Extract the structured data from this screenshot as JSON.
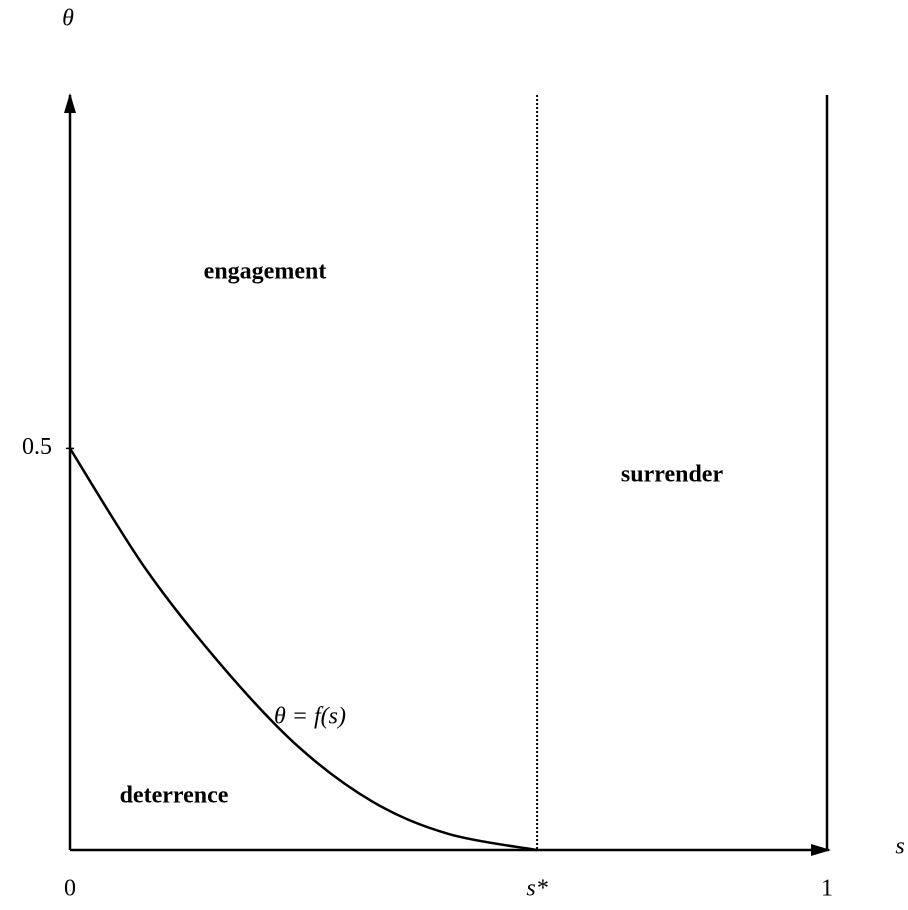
{
  "chart_data": {
    "type": "line",
    "y_axis_label": "θ",
    "x_axis_label": "s",
    "xlim": [
      0,
      1
    ],
    "xticks": [
      0,
      {
        "value": 0.617,
        "label": "s*"
      },
      1
    ],
    "ylim": [
      0,
      0.94
    ],
    "yticks": [
      0.5
    ],
    "x": [
      0,
      0.1,
      0.2,
      0.3,
      0.4,
      0.5,
      0.617
    ],
    "series": [
      {
        "name": "θ = f(s)",
        "color": "#000000",
        "values": [
          0.5,
          0.35,
          0.23,
          0.13,
          0.06,
          0.02,
          0
        ]
      }
    ],
    "annotations": [
      "engagement",
      "surrender",
      "deterrence"
    ]
  }
}
